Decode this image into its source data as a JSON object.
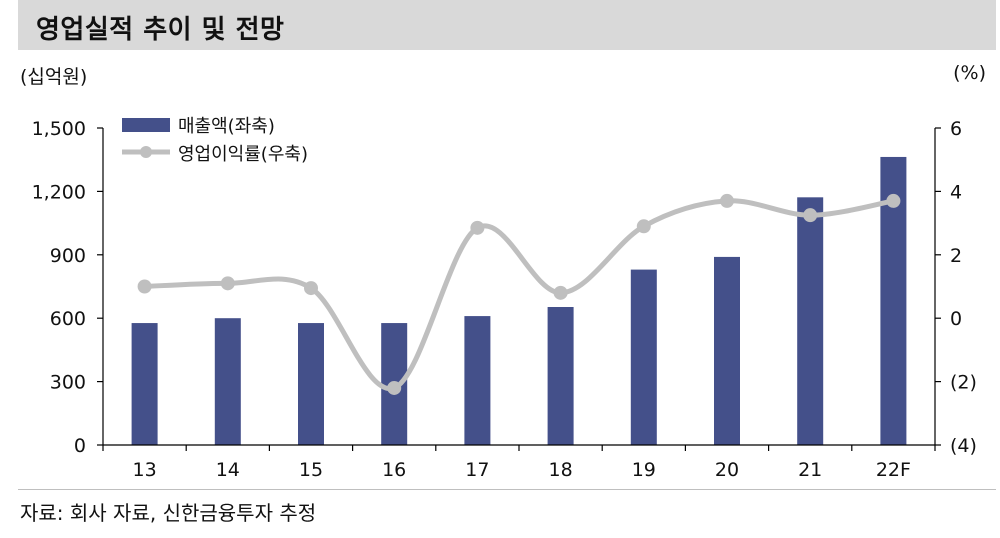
{
  "header": {
    "title": "영업실적 추이 및 전망",
    "unit_left": "(십억원)",
    "unit_right": "(%)"
  },
  "footer": {
    "source": "자료: 회사 자료, 신한금융투자 추정"
  },
  "chart_data": {
    "type": "bar",
    "categories": [
      "13",
      "14",
      "15",
      "16",
      "17",
      "18",
      "19",
      "20",
      "21",
      "22F"
    ],
    "series": [
      {
        "name": "매출액(좌축)",
        "type": "bar",
        "axis": "left",
        "color": "#44508a",
        "values": [
          577,
          600,
          577,
          577,
          610,
          653,
          830,
          890,
          1172,
          1363
        ]
      },
      {
        "name": "영업이익률(우축)",
        "type": "line",
        "axis": "right",
        "color": "#bfbfbf",
        "values": [
          1.0,
          1.1,
          0.95,
          -2.2,
          2.85,
          0.8,
          2.9,
          3.7,
          3.25,
          3.7
        ]
      }
    ],
    "y_left": {
      "ylim": [
        0,
        1500
      ],
      "ticks": [
        0,
        300,
        600,
        900,
        1200,
        1500
      ],
      "tick_labels": [
        "0",
        "300",
        "600",
        "900",
        "1,200",
        "1,500"
      ]
    },
    "y_right": {
      "ylim": [
        -4,
        6
      ],
      "ticks": [
        -4,
        -2,
        0,
        2,
        4,
        6
      ],
      "tick_labels": [
        "(4)",
        "(2)",
        "0",
        "2",
        "4",
        "6"
      ]
    },
    "grid": false,
    "legend": "top-left"
  }
}
